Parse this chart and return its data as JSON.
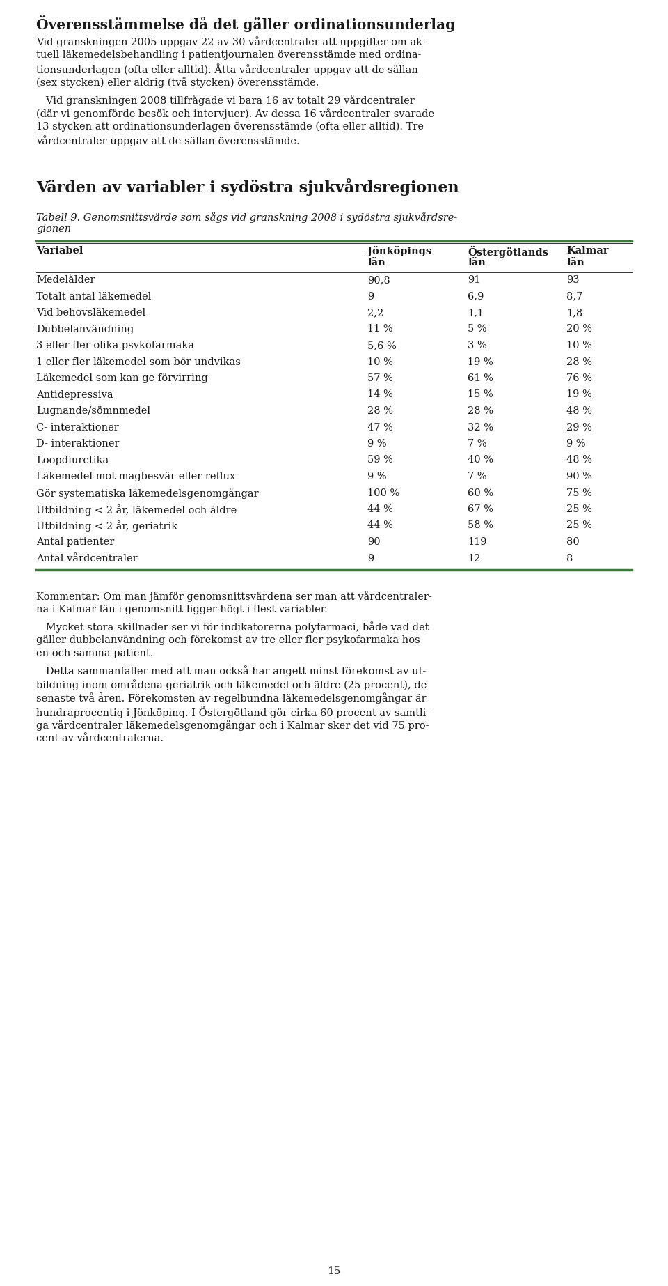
{
  "title1": "Överensstämmelse då det gäller ordinationsunderlag",
  "para1_lines": [
    "Vid granskningen 2005 uppgav 22 av 30 vårdcentraler att uppgifter om ak-",
    "tuell läkemedelsbehandling i patientjournalen överensstämde med ordina-",
    "tionsunderlagen (ofta eller alltid). Åtta vårdcentraler uppgav att de sällan",
    "(sex stycken) eller aldrig (två stycken) överensstämde."
  ],
  "para2_lines": [
    "   Vid granskningen 2008 tillfrågade vi bara 16 av totalt 29 vårdcentraler",
    "(där vi genomförde besök och intervjuer). Av dessa 16 vårdcentraler svarade",
    "13 stycken att ordinationsunderlagen överensstämde (ofta eller alltid). Tre",
    "vårdcentraler uppgav att de sällan överensstämde."
  ],
  "title2": "Värden av variabler i sydöstra sjukvårdsregionen",
  "caption_lines": [
    "Tabell 9. Genomsnittsvärde som sågs vid granskning 2008 i sydöstra sjukvårdsre-",
    "gionen"
  ],
  "col_headers": [
    "Variabel",
    "Jönköpings\nlän",
    "Östergötlands\nlän",
    "Kalmar\nlän"
  ],
  "table_rows": [
    [
      "Medelålder",
      "90,8",
      "91",
      "93"
    ],
    [
      "Totalt antal läkemedel",
      "9",
      "6,9",
      "8,7"
    ],
    [
      "Vid behovsläkemedel",
      "2,2",
      "1,1",
      "1,8"
    ],
    [
      "Dubbelanvändning",
      "11 %",
      "5 %",
      "20 %"
    ],
    [
      "3 eller fler olika psykofarmaka",
      "5,6 %",
      "3 %",
      "10 %"
    ],
    [
      "1 eller fler läkemedel som bör undvikas",
      "10 %",
      "19 %",
      "28 %"
    ],
    [
      "Läkemedel som kan ge förvirring",
      "57 %",
      "61 %",
      "76 %"
    ],
    [
      "Antidepressiva",
      "14 %",
      "15 %",
      "19 %"
    ],
    [
      "Lugnande/sömnmedel",
      "28 %",
      "28 %",
      "48 %"
    ],
    [
      "C- interaktioner",
      "47 %",
      "32 %",
      "29 %"
    ],
    [
      "D- interaktioner",
      "9 %",
      "7 %",
      "9 %"
    ],
    [
      "Loopdiuretika",
      "59 %",
      "40 %",
      "48 %"
    ],
    [
      "Läkemedel mot magbesvär eller reflux",
      "9 %",
      "7 %",
      "90 %"
    ],
    [
      "Gör systematiska läkemedelsgenomgångar",
      "100 %",
      "60 %",
      "75 %"
    ],
    [
      "Utbildning < 2 år, läkemedel och äldre",
      "44 %",
      "67 %",
      "25 %"
    ],
    [
      "Utbildning < 2 år, geriatrik",
      "44 %",
      "58 %",
      "25 %"
    ],
    [
      "Antal patienter",
      "90",
      "119",
      "80"
    ],
    [
      "Antal vårdcentraler",
      "9",
      "12",
      "8"
    ]
  ],
  "comment1_lines": [
    "Kommentar: Om man jämför genomsnittsvärdena ser man att vårdcentraler-",
    "na i Kalmar län i genomsnitt ligger högt i flest variabler."
  ],
  "comment2_lines": [
    "   Mycket stora skillnader ser vi för indikatorerna polyfarmaci, både vad det",
    "gäller dubbelanvändning och förekomst av tre eller fler psykofarmaka hos",
    "en och samma patient."
  ],
  "comment3_lines": [
    "   Detta sammanfaller med att man också har angett minst förekomst av ut-",
    "bildning inom områdena geriatrik och läkemedel och äldre (25 procent), de",
    "senaste två åren. Förekomsten av regelbundna läkemedelsgenomgångar är",
    "hundraprocentig i Jönköping. I Östergötland gör cirka 60 procent av samtli-",
    "ga vårdcentraler läkemedelsgenomgångar och i Kalmar sker det vid 75 pro-",
    "cent av vårdcentralerna."
  ],
  "page_number": "15",
  "green_color": "#3d7a3d",
  "dark_color": "#1a1a1a",
  "bg_color": "#ffffff"
}
